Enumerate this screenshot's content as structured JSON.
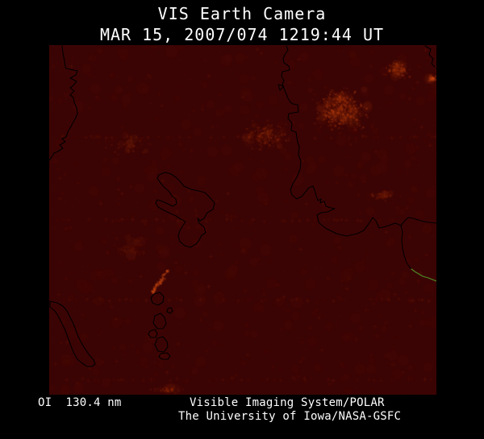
{
  "header": {
    "title": "VIS Earth Camera",
    "timestamp": "MAR 15, 2007/074 1219:44 UT"
  },
  "footer": {
    "wavelength": "OI  130.4 nm",
    "credit_line1": "Visible Imaging System/POLAR",
    "credit_line2": "The University of Iowa/NASA-GSFC"
  },
  "image": {
    "description": "Earth FUV dayglow image with coastline overlay",
    "colors": {
      "background": "#3B0404",
      "glow": "#C85418",
      "coastline": "#000000",
      "terminator": "#4E8F27",
      "text": "#FFFFFF"
    }
  }
}
